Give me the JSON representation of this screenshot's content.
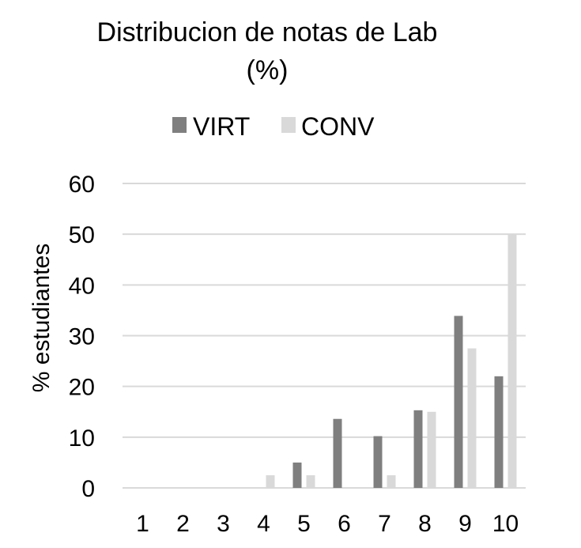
{
  "chart_data": {
    "type": "bar",
    "title_line1": "Distribucion de notas de Lab",
    "title_line2": "(%)",
    "ylabel": "% estudiantes",
    "xlabel": "",
    "categories": [
      "1",
      "2",
      "3",
      "4",
      "5",
      "6",
      "7",
      "8",
      "9",
      "10"
    ],
    "series": [
      {
        "name": "VIRT",
        "color": "#7f7f7f",
        "values": [
          0,
          0,
          0,
          0,
          5,
          13.6,
          10.2,
          15.3,
          33.9,
          22
        ]
      },
      {
        "name": "CONV",
        "color": "#d9d9d9",
        "values": [
          0,
          0,
          0,
          2.5,
          2.5,
          0,
          2.5,
          15,
          27.5,
          50
        ]
      }
    ],
    "ylim": [
      0,
      60
    ],
    "yticks": [
      "0",
      "10",
      "20",
      "30",
      "40",
      "50",
      "60"
    ],
    "grid": true,
    "legend": "top"
  }
}
